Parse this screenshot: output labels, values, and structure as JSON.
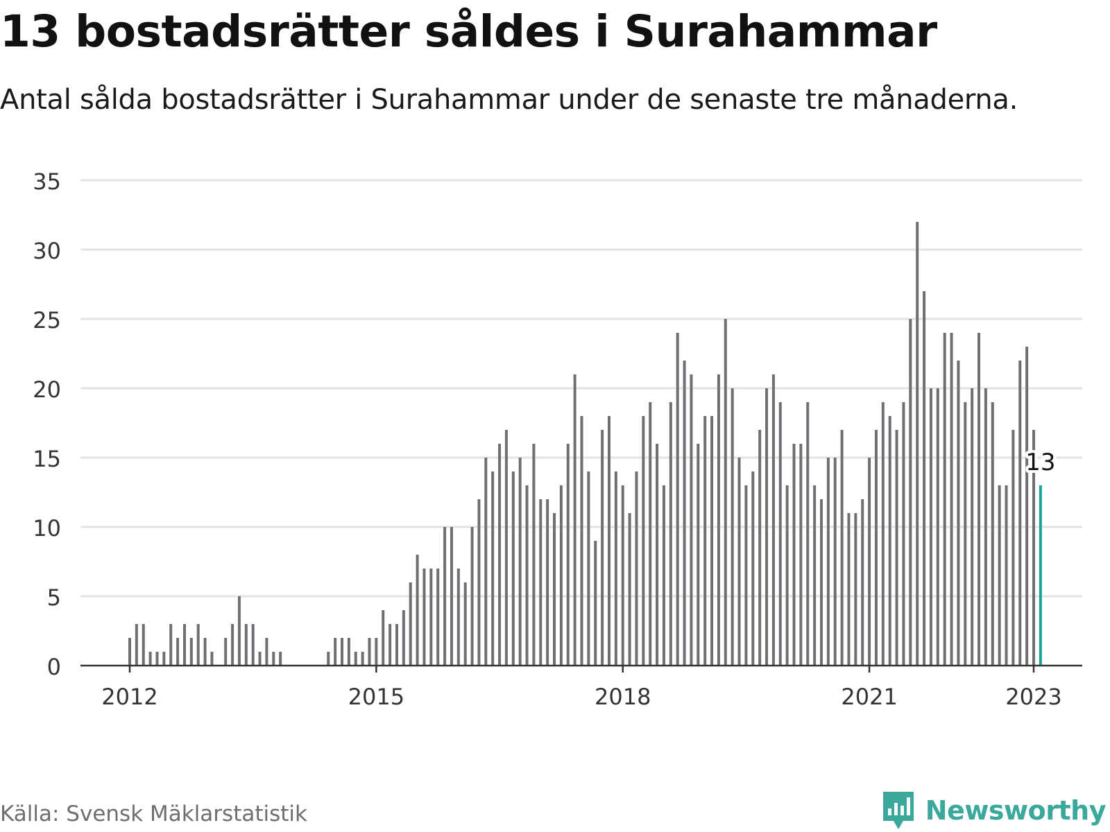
{
  "title": "13 bostadsrätter såldes i Surahammar",
  "subtitle": "Antal sålda bostadsrätter i Surahammar under de senaste tre månaderna.",
  "source": "Källa: Svensk Mäklarstatistik",
  "brand": "Newsworthy",
  "colors": {
    "bar": "#6e6e73",
    "highlight": "#1aa399",
    "grid": "#e3e3e3",
    "axis": "#333333",
    "brand": "#3aa89a"
  },
  "chart_data": {
    "type": "bar",
    "title": "13 bostadsrätter såldes i Surahammar",
    "xlabel": "",
    "ylabel": "",
    "ylim": [
      0,
      35
    ],
    "y_ticks": [
      "0",
      "5",
      "10",
      "15",
      "20",
      "25",
      "30",
      "35"
    ],
    "x_ticks": [
      "2012",
      "2015",
      "2018",
      "2021",
      "2023"
    ],
    "grid": true,
    "start": "2012-01",
    "end": "2023-01",
    "highlight_label": "13",
    "series": [
      {
        "values": [
          2,
          3,
          3,
          1,
          1,
          1,
          3,
          2,
          3,
          2,
          3,
          2,
          1,
          0,
          2,
          3,
          5,
          3,
          3,
          1,
          2,
          1,
          1,
          0,
          0,
          0,
          0,
          0,
          0,
          1,
          2,
          2,
          2,
          1,
          1,
          2,
          2,
          4,
          3,
          3,
          4,
          6,
          8,
          7,
          7,
          7,
          10,
          10,
          7,
          6,
          10,
          12,
          15,
          14,
          16,
          17,
          14,
          15,
          13,
          16,
          12,
          12,
          11,
          13,
          16,
          21,
          18,
          14,
          9,
          17,
          18,
          14,
          13,
          11,
          14,
          18,
          19,
          16,
          13,
          19,
          24,
          22,
          21,
          16,
          18,
          18,
          21,
          25,
          20,
          15,
          13,
          14,
          17,
          20,
          21,
          19,
          13,
          16,
          16,
          19,
          13,
          12,
          15,
          15,
          17,
          11,
          11,
          12,
          15,
          17,
          19,
          18,
          17,
          19,
          25,
          32,
          27,
          20,
          20,
          24,
          24,
          22,
          19,
          20,
          24,
          20,
          19,
          13,
          13,
          17,
          22,
          23,
          17,
          13
        ]
      }
    ]
  }
}
